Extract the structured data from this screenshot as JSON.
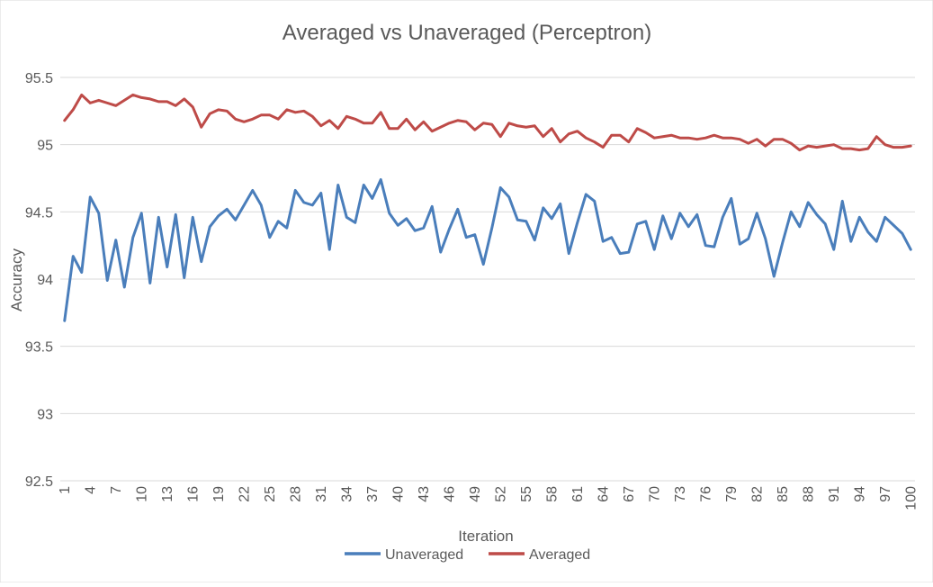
{
  "chart_data": {
    "type": "line",
    "title": "Averaged vs Unaveraged (Perceptron)",
    "xlabel": "Iteration",
    "ylabel": "Accuracy",
    "ylim": [
      92.5,
      95.5
    ],
    "ymajor": 0.5,
    "yticks": [
      "92.5",
      "93",
      "93.5",
      "94",
      "94.5",
      "95",
      "95.5"
    ],
    "xticks": [
      1,
      4,
      7,
      10,
      13,
      16,
      19,
      22,
      25,
      28,
      31,
      34,
      37,
      40,
      43,
      46,
      49,
      52,
      55,
      58,
      61,
      64,
      67,
      70,
      73,
      76,
      79,
      82,
      85,
      88,
      91,
      94,
      97,
      100
    ],
    "x": [
      1,
      2,
      3,
      4,
      5,
      6,
      7,
      8,
      9,
      10,
      11,
      12,
      13,
      14,
      15,
      16,
      17,
      18,
      19,
      20,
      21,
      22,
      23,
      24,
      25,
      26,
      27,
      28,
      29,
      30,
      31,
      32,
      33,
      34,
      35,
      36,
      37,
      38,
      39,
      40,
      41,
      42,
      43,
      44,
      45,
      46,
      47,
      48,
      49,
      50,
      51,
      52,
      53,
      54,
      55,
      56,
      57,
      58,
      59,
      60,
      61,
      62,
      63,
      64,
      65,
      66,
      67,
      68,
      69,
      70,
      71,
      72,
      73,
      74,
      75,
      76,
      77,
      78,
      79,
      80,
      81,
      82,
      83,
      84,
      85,
      86,
      87,
      88,
      89,
      90,
      91,
      92,
      93,
      94,
      95,
      96,
      97,
      98,
      99,
      100
    ],
    "grid": true,
    "legend_position": "bottom",
    "series": [
      {
        "name": "Unaveraged",
        "color": "#4a7ebb",
        "values": [
          93.69,
          94.17,
          94.05,
          94.61,
          94.49,
          93.99,
          94.29,
          93.94,
          94.31,
          94.49,
          93.97,
          94.46,
          94.09,
          94.48,
          94.01,
          94.46,
          94.13,
          94.39,
          94.47,
          94.52,
          94.44,
          94.55,
          94.66,
          94.55,
          94.31,
          94.43,
          94.38,
          94.66,
          94.57,
          94.55,
          94.64,
          94.22,
          94.7,
          94.46,
          94.42,
          94.7,
          94.6,
          94.74,
          94.49,
          94.4,
          94.45,
          94.36,
          94.38,
          94.54,
          94.2,
          94.37,
          94.52,
          94.31,
          94.33,
          94.11,
          94.38,
          94.68,
          94.61,
          94.44,
          94.43,
          94.29,
          94.53,
          94.45,
          94.56,
          94.19,
          94.42,
          94.63,
          94.58,
          94.28,
          94.31,
          94.19,
          94.2,
          94.41,
          94.43,
          94.22,
          94.47,
          94.3,
          94.49,
          94.39,
          94.48,
          94.25,
          94.24,
          94.46,
          94.6,
          94.26,
          94.3,
          94.49,
          94.3,
          94.02,
          94.27,
          94.5,
          94.39,
          94.57,
          94.48,
          94.41,
          94.22,
          94.58,
          94.28,
          94.46,
          94.35,
          94.28,
          94.46,
          94.4,
          94.34,
          94.22
        ]
      },
      {
        "name": "Averaged",
        "color": "#be4b48",
        "values": [
          95.18,
          95.26,
          95.37,
          95.31,
          95.33,
          95.31,
          95.29,
          95.33,
          95.37,
          95.35,
          95.34,
          95.32,
          95.32,
          95.29,
          95.34,
          95.28,
          95.13,
          95.23,
          95.26,
          95.25,
          95.19,
          95.17,
          95.19,
          95.22,
          95.22,
          95.19,
          95.26,
          95.24,
          95.25,
          95.21,
          95.14,
          95.18,
          95.12,
          95.21,
          95.19,
          95.16,
          95.16,
          95.24,
          95.12,
          95.12,
          95.19,
          95.11,
          95.17,
          95.1,
          95.13,
          95.16,
          95.18,
          95.17,
          95.11,
          95.16,
          95.15,
          95.06,
          95.16,
          95.14,
          95.13,
          95.14,
          95.06,
          95.12,
          95.02,
          95.08,
          95.1,
          95.05,
          95.02,
          94.98,
          95.07,
          95.07,
          95.02,
          95.12,
          95.09,
          95.05,
          95.06,
          95.07,
          95.05,
          95.05,
          95.04,
          95.05,
          95.07,
          95.05,
          95.05,
          95.04,
          95.01,
          95.04,
          94.99,
          95.04,
          95.04,
          95.01,
          94.96,
          94.99,
          94.98,
          94.99,
          95.0,
          94.97,
          94.97,
          94.96,
          94.97,
          95.06,
          95.0,
          94.98,
          94.98,
          94.99
        ]
      }
    ]
  }
}
